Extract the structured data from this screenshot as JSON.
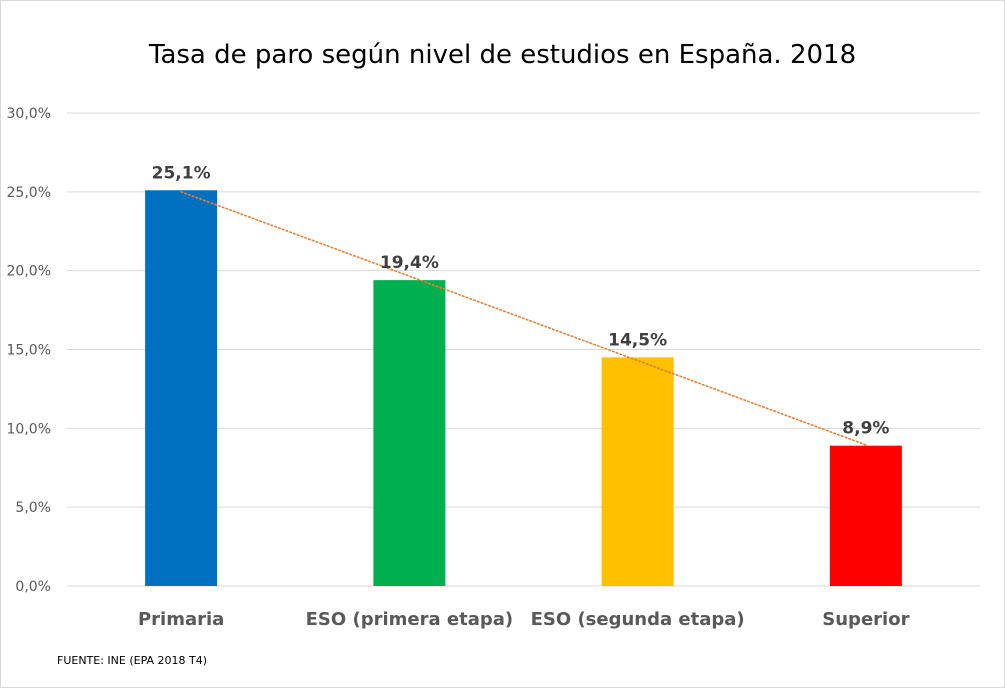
{
  "chart_data": {
    "type": "bar",
    "title": "Tasa de paro según nivel de estudios en España. 2018",
    "categories": [
      "Primaria",
      "ESO (primera etapa)",
      "ESO (segunda etapa)",
      "Superior"
    ],
    "values": [
      25.1,
      19.4,
      14.5,
      8.9
    ],
    "value_labels": [
      "25,1%",
      "19,4%",
      "14,5%",
      "8,9%"
    ],
    "bar_colors": [
      "#0070c0",
      "#00b050",
      "#ffc000",
      "#ff0000"
    ],
    "ylim": [
      0,
      30
    ],
    "y_ticks": [
      0,
      5,
      10,
      15,
      20,
      25,
      30
    ],
    "y_tick_labels": [
      "0,0%",
      "5,0%",
      "10,0%",
      "15,0%",
      "20,0%",
      "25,0%",
      "30,0%"
    ],
    "grid": true,
    "trendline": {
      "type": "linear",
      "color": "#ed7d31",
      "style": "dotted"
    },
    "xlabel": "",
    "ylabel": ""
  },
  "source_note": "FUENTE: INE (EPA 2018  T4)"
}
